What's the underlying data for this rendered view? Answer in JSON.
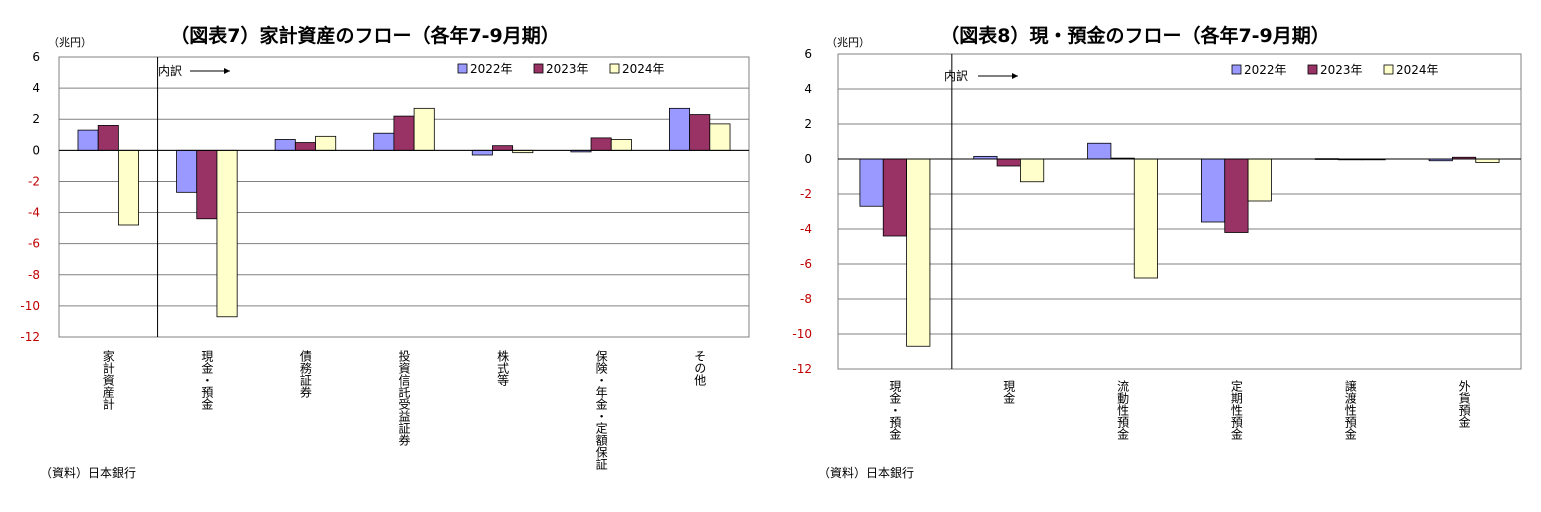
{
  "chart_data": [
    {
      "type": "bar",
      "title": "（図表7）家計資産のフロー（各年7-9月期）",
      "unit_label": "（兆円）",
      "annotation": "内訳",
      "source": "（資料）日本銀行",
      "ylim": [
        -12,
        6
      ],
      "yticks": [
        6,
        4,
        2,
        0,
        -2,
        -4,
        -6,
        -8,
        -10,
        -12
      ],
      "legend_position": "top-right",
      "grid": true,
      "categories": [
        "家計資産計",
        "現金・預金",
        "債務証券",
        "投資信託受益証券",
        "株式等",
        "保険・年金・定額保証",
        "その他"
      ],
      "series": [
        {
          "name": "2022年",
          "color": "#9999ff",
          "values": [
            1.3,
            -2.7,
            0.7,
            1.1,
            -0.3,
            -0.1,
            2.7
          ]
        },
        {
          "name": "2023年",
          "color": "#993366",
          "values": [
            1.6,
            -4.4,
            0.5,
            2.2,
            0.3,
            0.8,
            2.3
          ]
        },
        {
          "name": "2024年",
          "color": "#ffffcc",
          "values": [
            -4.8,
            -10.7,
            0.9,
            2.7,
            -0.15,
            0.7,
            1.7
          ]
        }
      ]
    },
    {
      "type": "bar",
      "title": "（図表8）現・預金のフロー（各年7-9月期）",
      "unit_label": "（兆円）",
      "annotation": "内訳",
      "source": "（資料）日本銀行",
      "ylim": [
        -12,
        6
      ],
      "yticks": [
        6,
        4,
        2,
        0,
        -2,
        -4,
        -6,
        -8,
        -10,
        -12
      ],
      "legend_position": "top-right",
      "grid": true,
      "categories": [
        "現金・預金",
        "現金",
        "流動性預金",
        "定期性預金",
        "譲渡性預金",
        "外貨預金"
      ],
      "series": [
        {
          "name": "2022年",
          "color": "#9999ff",
          "values": [
            -2.7,
            0.15,
            0.9,
            -3.6,
            0.02,
            -0.1
          ]
        },
        {
          "name": "2023年",
          "color": "#993366",
          "values": [
            -4.4,
            -0.4,
            0.05,
            -4.2,
            0.0,
            0.1
          ]
        },
        {
          "name": "2024年",
          "color": "#ffffcc",
          "values": [
            -10.7,
            -1.3,
            -6.8,
            -2.4,
            0.0,
            -0.2
          ]
        }
      ]
    }
  ]
}
